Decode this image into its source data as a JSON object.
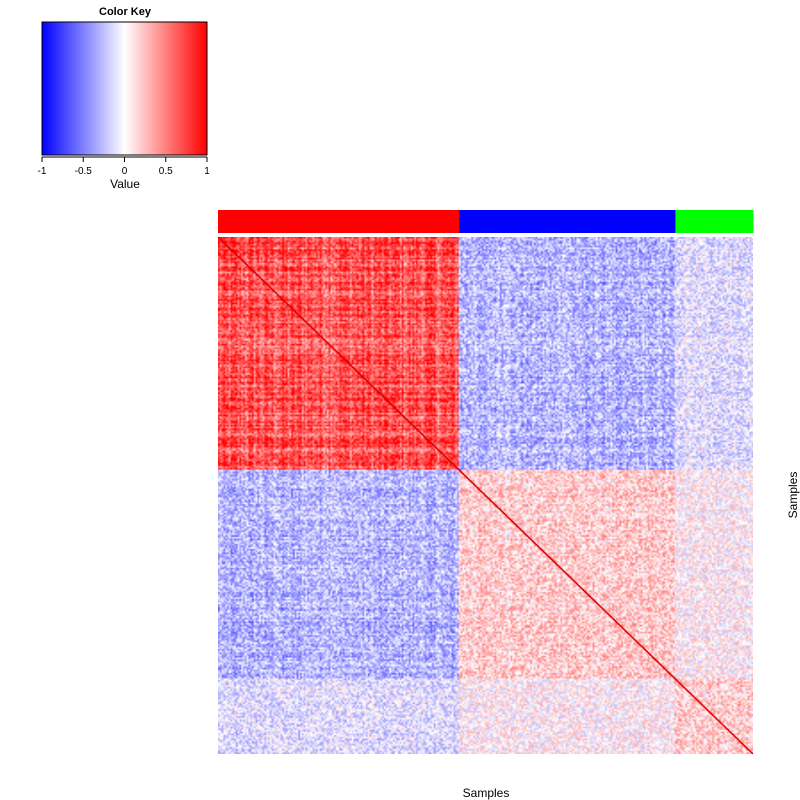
{
  "chart_data": {
    "type": "heatmap",
    "title": "",
    "xlabel": "Samples",
    "ylabel": "Samples",
    "value_range": [
      -1,
      1
    ],
    "color_scale": {
      "low": "#0000ff",
      "mid": "#ffffff",
      "high": "#ff0000"
    },
    "color_key": {
      "title": "Color Key",
      "xlabel": "Value",
      "ticks": [
        -1,
        -0.5,
        0,
        0.5,
        1
      ],
      "tick_labels": [
        "-1",
        "-0.5",
        "0",
        "0.5",
        "1"
      ]
    },
    "groups": [
      {
        "color": "#ff0000",
        "fraction": 0.451
      },
      {
        "color": "#0000ff",
        "fraction": 0.404
      },
      {
        "color": "#00ff00",
        "fraction": 0.145
      }
    ],
    "block_mean_correlation": [
      [
        0.85,
        -0.35,
        -0.15
      ],
      [
        -0.35,
        0.25,
        0.05
      ],
      [
        -0.15,
        0.05,
        0.25
      ]
    ],
    "diagonal_value": 1
  }
}
